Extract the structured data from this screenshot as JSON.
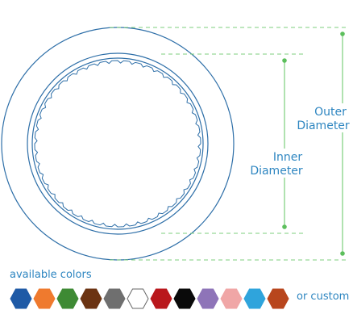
{
  "labels": {
    "outer_line1": "Outer",
    "outer_line2": "Diameter",
    "inner_line1": "Inner",
    "inner_line2": "Diameter",
    "available_colors": "available colors",
    "or_custom": "or custom"
  },
  "colors": {
    "ring_stroke": "#2e6fa8",
    "dimension_line": "#7ccf7c",
    "dimension_dot": "#5cbf5c",
    "label_text": "#2e86c1"
  },
  "swatches": [
    {
      "name": "blue",
      "color": "#1f5aa6"
    },
    {
      "name": "orange",
      "color": "#ef7a2e"
    },
    {
      "name": "green",
      "color": "#3e8a34"
    },
    {
      "name": "brown",
      "color": "#6b3312"
    },
    {
      "name": "gray",
      "color": "#6f6f6f"
    },
    {
      "name": "white",
      "color": "#ffffff"
    },
    {
      "name": "red",
      "color": "#b9171c"
    },
    {
      "name": "black",
      "color": "#0a0a0a"
    },
    {
      "name": "purple",
      "color": "#8e74b8"
    },
    {
      "name": "pink",
      "color": "#f0a6a6"
    },
    {
      "name": "light-blue",
      "color": "#2fa4dc"
    },
    {
      "name": "rust",
      "color": "#b8461d"
    }
  ]
}
